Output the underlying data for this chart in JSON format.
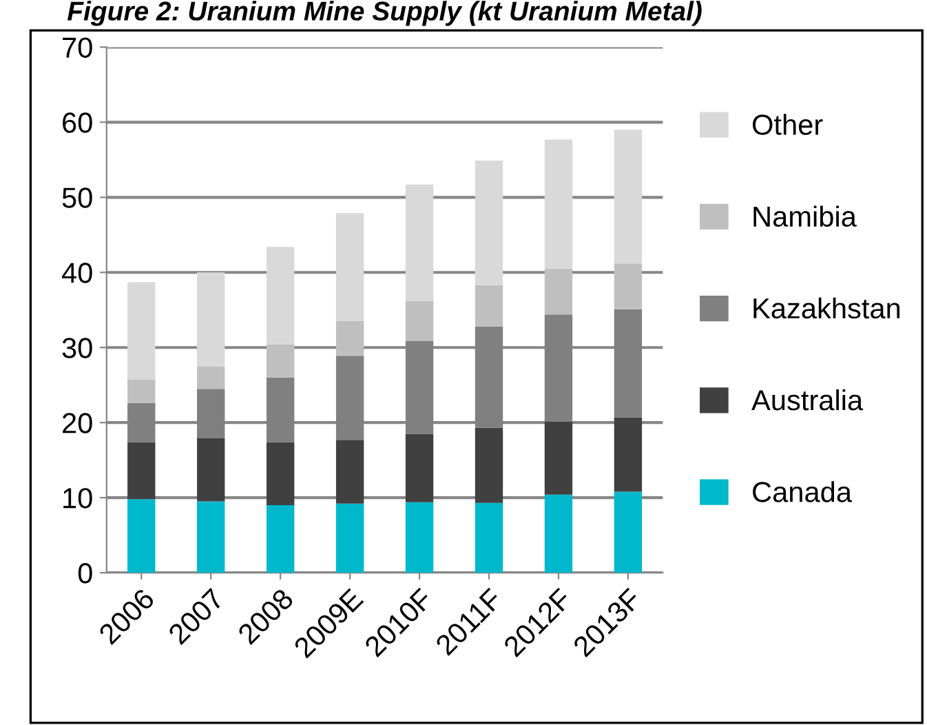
{
  "chart_data": {
    "type": "bar",
    "stacked": true,
    "title": "Figure 2: Uranium Mine Supply (kt Uranium Metal)",
    "categories": [
      "2006",
      "2007",
      "2008",
      "2009E",
      "2010F",
      "2011F",
      "2012F",
      "2013F"
    ],
    "series": [
      {
        "name": "Canada",
        "color": "#00b8cc",
        "values": [
          9.8,
          9.5,
          9.0,
          9.2,
          9.4,
          9.3,
          10.4,
          10.8
        ]
      },
      {
        "name": "Australia",
        "color": "#404040",
        "values": [
          7.6,
          8.4,
          8.4,
          8.5,
          9.1,
          10.0,
          9.7,
          9.9
        ]
      },
      {
        "name": "Kazakhstan",
        "color": "#808080",
        "values": [
          5.2,
          6.6,
          8.6,
          11.2,
          12.4,
          13.5,
          14.3,
          14.4
        ]
      },
      {
        "name": "Namibia",
        "color": "#bfbfbf",
        "values": [
          3.1,
          3.0,
          4.4,
          4.6,
          5.3,
          5.5,
          6.1,
          6.1
        ]
      },
      {
        "name": "Other",
        "color": "#d9d9d9",
        "values": [
          13.0,
          12.5,
          13.0,
          14.4,
          15.5,
          16.6,
          17.2,
          17.8
        ]
      }
    ],
    "ylim": [
      0,
      70
    ],
    "yticks": [
      0,
      10,
      20,
      30,
      40,
      50,
      60,
      70
    ],
    "grid": "y",
    "legend": "right"
  }
}
